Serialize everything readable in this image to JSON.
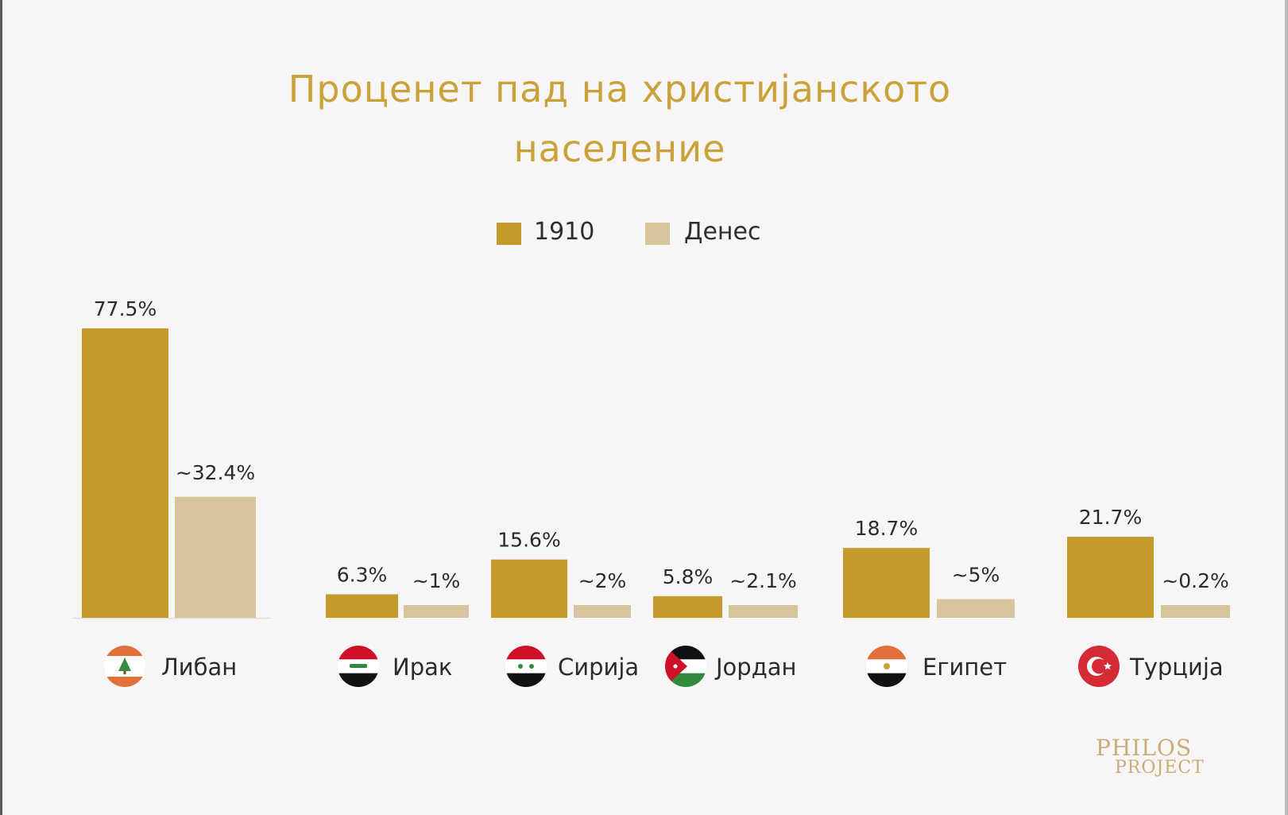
{
  "chart_data": {
    "type": "bar",
    "title": "Проценет пад на христијанското население",
    "title_lines": [
      "Проценет пад на христијанското",
      "население"
    ],
    "categories": [
      "Либан",
      "Ирак",
      "Сирија",
      "Јордан",
      "Египет",
      "Турција"
    ],
    "series": [
      {
        "name": "1910",
        "color": "#c49a2c",
        "values": [
          77.5,
          6.3,
          15.6,
          5.8,
          18.7,
          21.7
        ],
        "labels": [
          "77.5%",
          "6.3%",
          "15.6%",
          "5.8%",
          "18.7%",
          "21.7%"
        ]
      },
      {
        "name": "Денес",
        "color": "#d6c49b",
        "values": [
          32.4,
          1,
          2,
          2.1,
          5,
          0.2
        ],
        "labels": [
          "~32.4%",
          "~1%",
          "~2%",
          "~2.1%",
          "~5%",
          "~0.2%"
        ]
      }
    ],
    "flag_icons": [
      "lebanon-flag-icon",
      "iraq-flag-icon",
      "syria-flag-icon",
      "jordan-flag-icon",
      "egypt-flag-icon",
      "turkey-flag-icon"
    ],
    "legend_position": "top-center",
    "grid": false,
    "ylim": [
      0,
      80
    ]
  },
  "logo": {
    "line1": "PHILOS",
    "line2": "PROJECT"
  }
}
